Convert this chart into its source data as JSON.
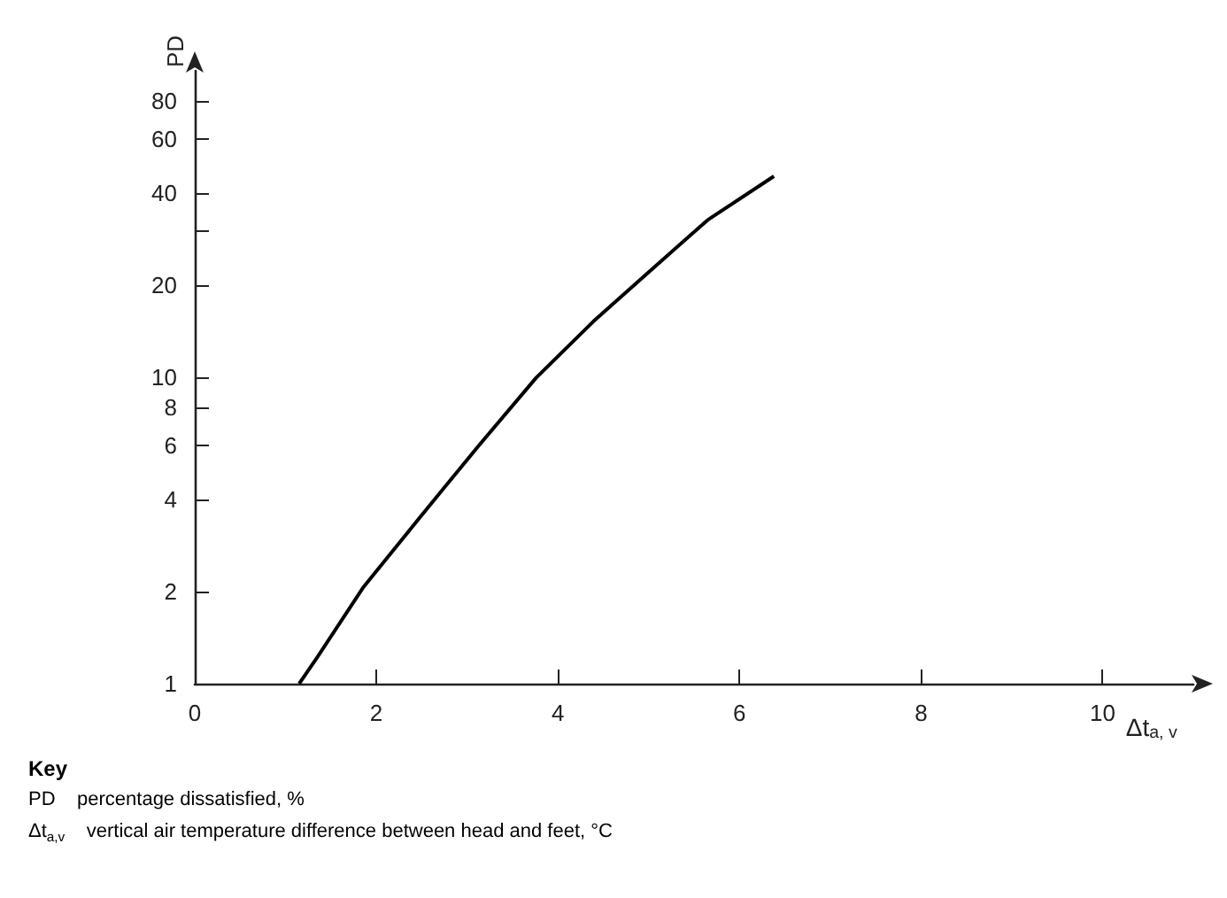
{
  "chart_data": {
    "type": "line",
    "xlabel": "Δt$_{a, v}$",
    "ylabel": "PD",
    "x": [
      1.15,
      1.35,
      1.86,
      2.49,
      3.13,
      3.76,
      4.39,
      5.02,
      5.65,
      6.38
    ],
    "series": [
      {
        "color": "#000000",
        "values": [
          1,
          1.22,
          2.07,
          3.52,
          5.99,
          9.96,
          15.2,
          22.3,
          32.6,
          45.3
        ]
      }
    ],
    "xlim": [
      0,
      11
    ],
    "xticks": [
      0,
      2,
      4,
      6,
      8,
      10
    ],
    "ylim": [
      1,
      100
    ],
    "yticks": [
      1,
      2,
      4,
      6,
      8,
      10,
      20,
      {
        "value": 30,
        "label": null
      },
      40,
      60,
      80
    ],
    "log": "y",
    "grid": false,
    "marker": "none",
    "line_style": "solid",
    "annotations": [
      "Key",
      "PD    percentage dissatisfied, %",
      "Δt$_{a,v}$    vertical air temperature difference between head and feet, °C"
    ]
  }
}
